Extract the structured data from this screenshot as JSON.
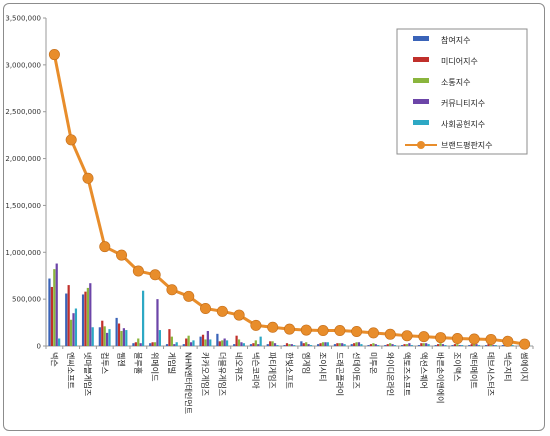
{
  "chart_data": {
    "type": "bar",
    "ylim": [
      0,
      3500000
    ],
    "yticks": [
      0,
      500000,
      1000000,
      1500000,
      2000000,
      2500000,
      3000000,
      3500000
    ],
    "ytick_labels": [
      "0",
      "500,000",
      "1,000,000",
      "1,500,000",
      "2,000,000",
      "2,500,000",
      "3,000,000",
      "3,500,000"
    ],
    "grid": false,
    "legend_position": "top-right",
    "categories": [
      "넥슨",
      "엔씨소프트",
      "넷마블게임즈",
      "컴투스",
      "웹젠",
      "블루홀",
      "위메이드",
      "게임빌",
      "NHN엔터테인먼트",
      "카카오게임즈",
      "더블유게임즈",
      "네오위즈",
      "넥슨코리아",
      "파티게임즈",
      "한빛소프트",
      "엠게임",
      "조이시티",
      "드래곤플라이",
      "선데이토즈",
      "미투온",
      "와이디온라인",
      "액토즈소프트",
      "액션스퀘어",
      "바른손이앤에이",
      "조이맥스",
      "엔터메이트",
      "데브시스터즈",
      "넥슨지티",
      "썸에이지"
    ],
    "series": [
      {
        "name": "참여지수",
        "color": "#3a63b8",
        "values": [
          720000,
          560000,
          550000,
          200000,
          300000,
          30000,
          30000,
          20000,
          20000,
          100000,
          130000,
          20000,
          20000,
          20000,
          10000,
          50000,
          20000,
          20000,
          20000,
          10000,
          10000,
          10000,
          10000,
          10000,
          10000,
          10000,
          10000,
          10000,
          5000
        ]
      },
      {
        "name": "미디어지수",
        "color": "#c0302b",
        "values": [
          630000,
          650000,
          580000,
          270000,
          240000,
          40000,
          40000,
          180000,
          80000,
          120000,
          50000,
          110000,
          30000,
          50000,
          30000,
          30000,
          30000,
          30000,
          30000,
          20000,
          20000,
          20000,
          30000,
          20000,
          20000,
          20000,
          20000,
          20000,
          10000
        ]
      },
      {
        "name": "소통지수",
        "color": "#8ab53d",
        "values": [
          820000,
          280000,
          620000,
          210000,
          160000,
          80000,
          40000,
          100000,
          110000,
          70000,
          60000,
          70000,
          60000,
          50000,
          20000,
          40000,
          40000,
          30000,
          40000,
          30000,
          30000,
          20000,
          30000,
          30000,
          20000,
          20000,
          20000,
          20000,
          10000
        ]
      },
      {
        "name": "커뮤니티지수",
        "color": "#6c45a8",
        "values": [
          880000,
          350000,
          670000,
          140000,
          190000,
          30000,
          500000,
          20000,
          40000,
          160000,
          80000,
          40000,
          20000,
          30000,
          20000,
          20000,
          40000,
          30000,
          40000,
          20000,
          20000,
          30000,
          30000,
          20000,
          10000,
          20000,
          10000,
          10000,
          10000
        ]
      },
      {
        "name": "사회공헌지수",
        "color": "#2da8c4",
        "values": [
          80000,
          400000,
          200000,
          180000,
          170000,
          590000,
          170000,
          40000,
          60000,
          70000,
          60000,
          30000,
          100000,
          10000,
          10000,
          10000,
          40000,
          20000,
          20000,
          10000,
          10000,
          10000,
          20000,
          10000,
          10000,
          10000,
          10000,
          10000,
          5000
        ]
      }
    ],
    "line": {
      "name": "브랜드평판지수",
      "color": "#e88d2b",
      "values": [
        3110000,
        2200000,
        1790000,
        1060000,
        970000,
        800000,
        760000,
        600000,
        530000,
        400000,
        370000,
        330000,
        220000,
        200000,
        180000,
        170000,
        165000,
        165000,
        155000,
        140000,
        125000,
        110000,
        100000,
        90000,
        80000,
        75000,
        70000,
        50000,
        20000
      ]
    }
  }
}
